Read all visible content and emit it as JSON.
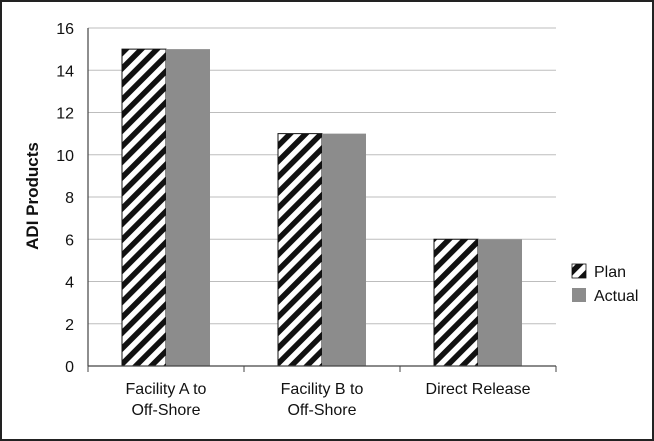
{
  "chart_data": {
    "type": "bar",
    "title": "",
    "xlabel": "",
    "ylabel": "ADI Products",
    "ylim": [
      0,
      16
    ],
    "yticks": [
      0,
      2,
      4,
      6,
      8,
      10,
      12,
      14,
      16
    ],
    "grid": true,
    "legend_position": "right",
    "categories": [
      [
        "Facility A to",
        "Off-Shore"
      ],
      [
        "Facility B to",
        "Off-Shore"
      ],
      [
        "Direct Release"
      ]
    ],
    "series": [
      {
        "name": "Plan",
        "values": [
          15,
          11,
          6
        ],
        "pattern": "diagonal-stripes",
        "color": "#111111"
      },
      {
        "name": "Actual",
        "values": [
          15,
          11,
          6
        ],
        "color": "#8c8c8c"
      }
    ]
  }
}
